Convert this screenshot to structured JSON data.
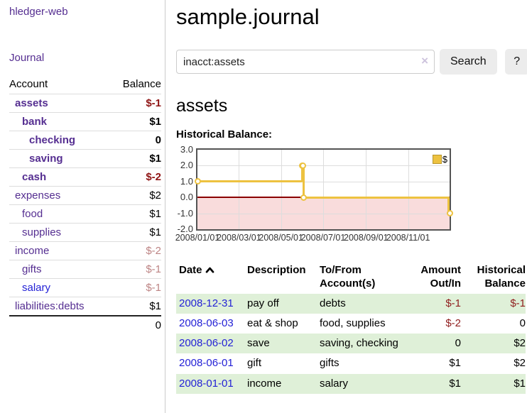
{
  "sidebar": {
    "app_title": "hledger-web",
    "nav_journal": "Journal",
    "table": {
      "headers": {
        "account": "Account",
        "balance": "Balance"
      },
      "rows": [
        {
          "account": "assets",
          "balance": "$-1",
          "depth": 1,
          "bold": true,
          "neg": "strong"
        },
        {
          "account": "bank",
          "balance": "$1",
          "depth": 2,
          "bold": true
        },
        {
          "account": "checking",
          "balance": "0",
          "depth": 3,
          "bold": true
        },
        {
          "account": "saving",
          "balance": "$1",
          "depth": 3,
          "bold": true
        },
        {
          "account": "cash",
          "balance": "$-2",
          "depth": 2,
          "bold": true,
          "neg": "strong"
        },
        {
          "account": "expenses",
          "balance": "$2",
          "depth": 1
        },
        {
          "account": "food",
          "balance": "$1",
          "depth": 2
        },
        {
          "account": "supplies",
          "balance": "$1",
          "depth": 2
        },
        {
          "account": "income",
          "balance": "$-2",
          "depth": 1,
          "neg": "soft"
        },
        {
          "account": "gifts",
          "balance": "$-1",
          "depth": 2,
          "neg": "soft"
        },
        {
          "account": "salary",
          "balance": "$-1",
          "depth": 2,
          "neg": "soft",
          "link": "blue"
        },
        {
          "account": "liabilities:debts",
          "balance": "$1",
          "depth": 1
        }
      ],
      "total": "0"
    }
  },
  "main": {
    "title": "sample.journal",
    "search": {
      "value": "inacct:assets",
      "clear_icon": "×",
      "button": "Search",
      "help_button": "?"
    },
    "account_heading": "assets",
    "chart_label": "Historical Balance:"
  },
  "chart_data": {
    "type": "line",
    "title": "Historical Balance",
    "step": true,
    "series": [
      {
        "name": "$",
        "color": "#edc240",
        "points": [
          [
            "2008-01-01",
            1
          ],
          [
            "2008-06-01",
            2
          ],
          [
            "2008-06-02",
            2
          ],
          [
            "2008-06-03",
            0
          ],
          [
            "2008-12-31",
            -1
          ]
        ]
      }
    ],
    "xrange": [
      "2008-01-01",
      "2008-12-31"
    ],
    "ylim": [
      -2,
      3
    ],
    "yticks": [
      "3.0",
      "2.0",
      "1.0",
      "0.0",
      "-1.0",
      "-2.0"
    ],
    "xticks": [
      "2008/01/01",
      "2008/03/01",
      "2008/05/01",
      "2008/07/01",
      "2008/09/01",
      "2008/11/01"
    ],
    "grid": true,
    "legend_position": "top-right",
    "legend_label": "$",
    "negative_region_color": "#f9dcdc",
    "zero_line_color": "#8b0000"
  },
  "register": {
    "headers": {
      "date": "Date",
      "description": "Description",
      "accounts": "To/From Account(s)",
      "amount": "Amount Out/In",
      "balance": "Historical Balance"
    },
    "rows": [
      {
        "date": "2008-12-31",
        "description": "pay off",
        "accounts": "debts",
        "amount": "$-1",
        "amount_neg": true,
        "balance": "$-1",
        "balance_neg": true
      },
      {
        "date": "2008-06-03",
        "description": "eat & shop",
        "accounts": "food, supplies",
        "amount": "$-2",
        "amount_neg": true,
        "balance": "0"
      },
      {
        "date": "2008-06-02",
        "description": "save",
        "accounts": "saving, checking",
        "amount": "0",
        "balance": "$2"
      },
      {
        "date": "2008-06-01",
        "description": "gift",
        "accounts": "gifts",
        "amount": "$1",
        "balance": "$2"
      },
      {
        "date": "2008-01-01",
        "description": "income",
        "accounts": "salary",
        "amount": "$1",
        "balance": "$1"
      }
    ]
  }
}
